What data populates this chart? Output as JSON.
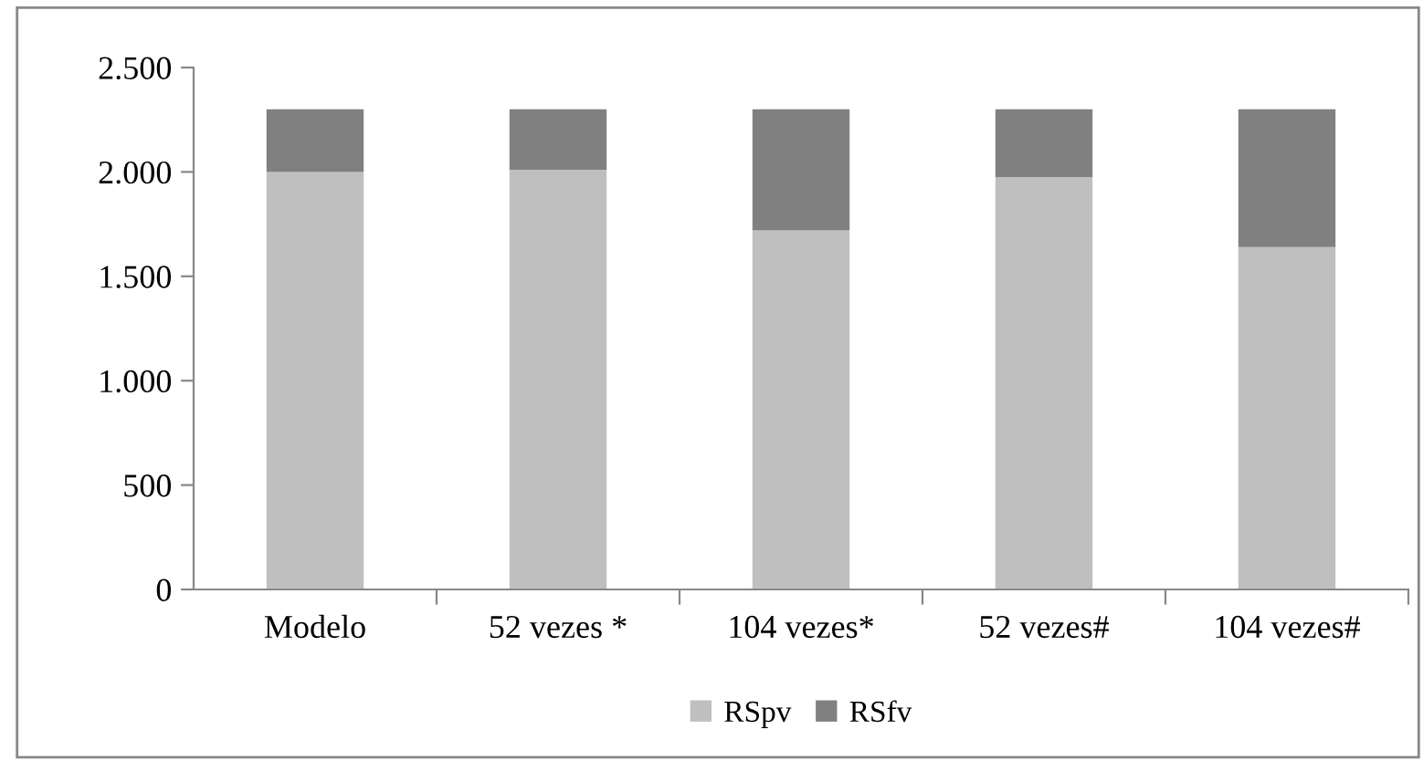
{
  "chart_data": {
    "type": "bar",
    "stacked": true,
    "categories": [
      "Modelo",
      "52 vezes *",
      "104 vezes*",
      "52 vezes#",
      "104 vezes#"
    ],
    "series": [
      {
        "name": "RSpv",
        "color": "#bfbfbf",
        "values": [
          2000,
          2010,
          1720,
          1975,
          1640
        ]
      },
      {
        "name": "RSfv",
        "color": "#808080",
        "values": [
          300,
          290,
          580,
          325,
          660
        ]
      }
    ],
    "ylim": [
      0,
      2500
    ],
    "yticks": [
      {
        "value": 0,
        "label": "0"
      },
      {
        "value": 500,
        "label": "500"
      },
      {
        "value": 1000,
        "label": "1.000"
      },
      {
        "value": 1500,
        "label": "1.500"
      },
      {
        "value": 2000,
        "label": "2.000"
      },
      {
        "value": 2500,
        "label": "2.500"
      }
    ],
    "grid": false,
    "legend": "bottom"
  }
}
